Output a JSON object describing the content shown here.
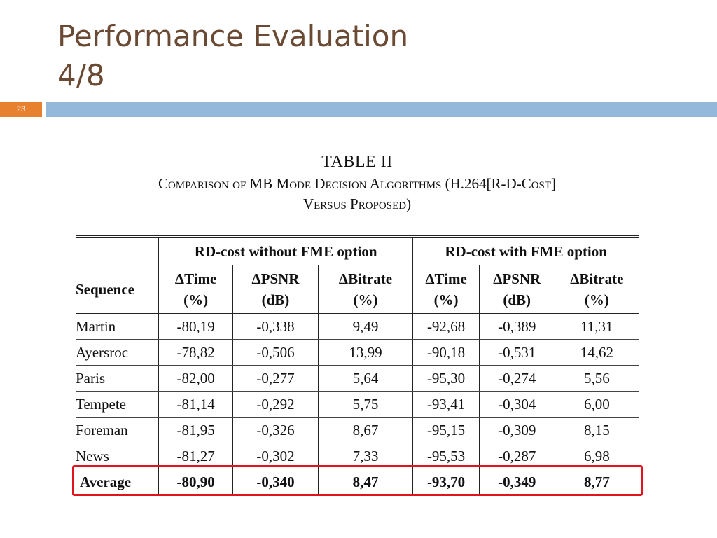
{
  "slide": {
    "title_line1": "Performance Evaluation",
    "title_line2": "4/8",
    "number": "23"
  },
  "caption": {
    "label": "TABLE II",
    "line1": "Comparison of MB Mode Decision Algorithms (H.264[R-D-Cost]",
    "line2": "Versus Proposed)"
  },
  "table": {
    "groups": [
      "RD-cost without FME option",
      "RD-cost with FME option"
    ],
    "columns": [
      {
        "name": "Sequence",
        "unit": ""
      },
      {
        "name": "ΔTime",
        "unit": "(%)"
      },
      {
        "name": "ΔPSNR",
        "unit": "(dB)"
      },
      {
        "name": "ΔBitrate",
        "unit": "(%)"
      },
      {
        "name": "ΔTime",
        "unit": "(%)"
      },
      {
        "name": "ΔPSNR",
        "unit": "(dB)"
      },
      {
        "name": "ΔBitrate",
        "unit": "(%)"
      }
    ],
    "rows": [
      [
        "Martin",
        "-80,19",
        "-0,338",
        "9,49",
        "-92,68",
        "-0,389",
        "11,31"
      ],
      [
        "Ayersroc",
        "-78,82",
        "-0,506",
        "13,99",
        "-90,18",
        "-0,531",
        "14,62"
      ],
      [
        "Paris",
        "-82,00",
        "-0,277",
        "5,64",
        "-95,30",
        "-0,274",
        "5,56"
      ],
      [
        "Tempete",
        "-81,14",
        "-0,292",
        "5,75",
        "-93,41",
        "-0,304",
        "6,00"
      ],
      [
        "Foreman",
        "-81,95",
        "-0,326",
        "8,67",
        "-95,15",
        "-0,309",
        "8,15"
      ],
      [
        "News",
        "-81,27",
        "-0,302",
        "7,33",
        "-95,53",
        "-0,287",
        "6,98"
      ]
    ],
    "average": [
      "Average",
      "-80,90",
      "-0,340",
      "8,47",
      "-93,70",
      "-0,349",
      "8,77"
    ]
  },
  "colors": {
    "title_text": "#6b4a34",
    "slide_number_bg": "#e8812f",
    "title_bar": "#93b8d9",
    "highlight_border": "#e3131c"
  }
}
